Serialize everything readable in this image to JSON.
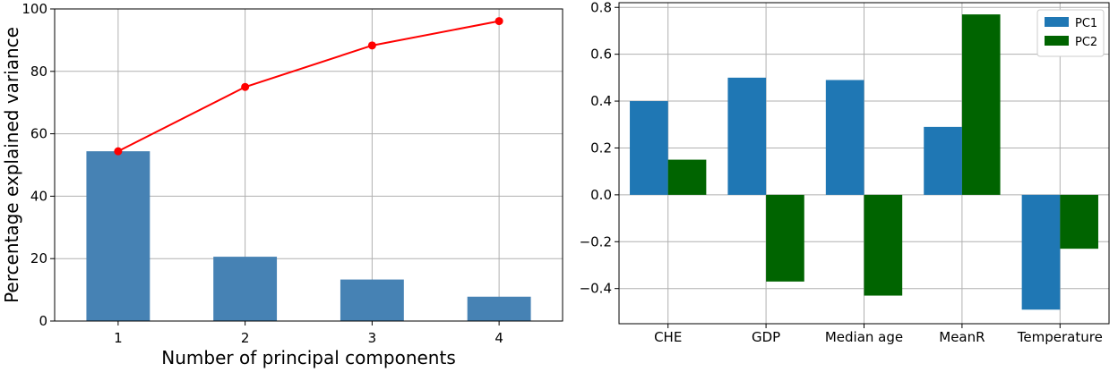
{
  "chart_data": [
    {
      "type": "bar",
      "xlabel": "Number of principal components",
      "ylabel": "Percentage explained variance",
      "categories": [
        "1",
        "2",
        "3",
        "4"
      ],
      "xlim": [
        0.5,
        4.5
      ],
      "ylim": [
        0,
        100
      ],
      "yticks": [
        0,
        20,
        40,
        60,
        80,
        100
      ],
      "grid": true,
      "bar_color": "#4682b4",
      "line_color": "#ff0000",
      "series": [
        {
          "kind": "bar",
          "values": [
            54.4,
            20.6,
            13.3,
            7.8
          ]
        },
        {
          "kind": "line",
          "values": [
            54.4,
            75.0,
            88.3,
            96.1
          ]
        }
      ]
    },
    {
      "type": "bar",
      "categories": [
        "CHE",
        "GDP",
        "Median age",
        "MeanR",
        "Temperature"
      ],
      "ylim": [
        -0.55,
        0.82
      ],
      "yticks": [
        -0.4,
        -0.2,
        0.0,
        0.2,
        0.4,
        0.6,
        0.8
      ],
      "ytick_labels": [
        "−0.4",
        "−0.2",
        "0.0",
        "0.2",
        "0.4",
        "0.6",
        "0.8"
      ],
      "grid": true,
      "legend": "top-right",
      "series": [
        {
          "name": "PC1",
          "color": "#1f77b4",
          "values": [
            0.4,
            0.5,
            0.49,
            0.29,
            -0.49
          ]
        },
        {
          "name": "PC2",
          "color": "#006400",
          "values": [
            0.15,
            -0.37,
            -0.43,
            0.77,
            -0.23
          ]
        }
      ]
    }
  ]
}
